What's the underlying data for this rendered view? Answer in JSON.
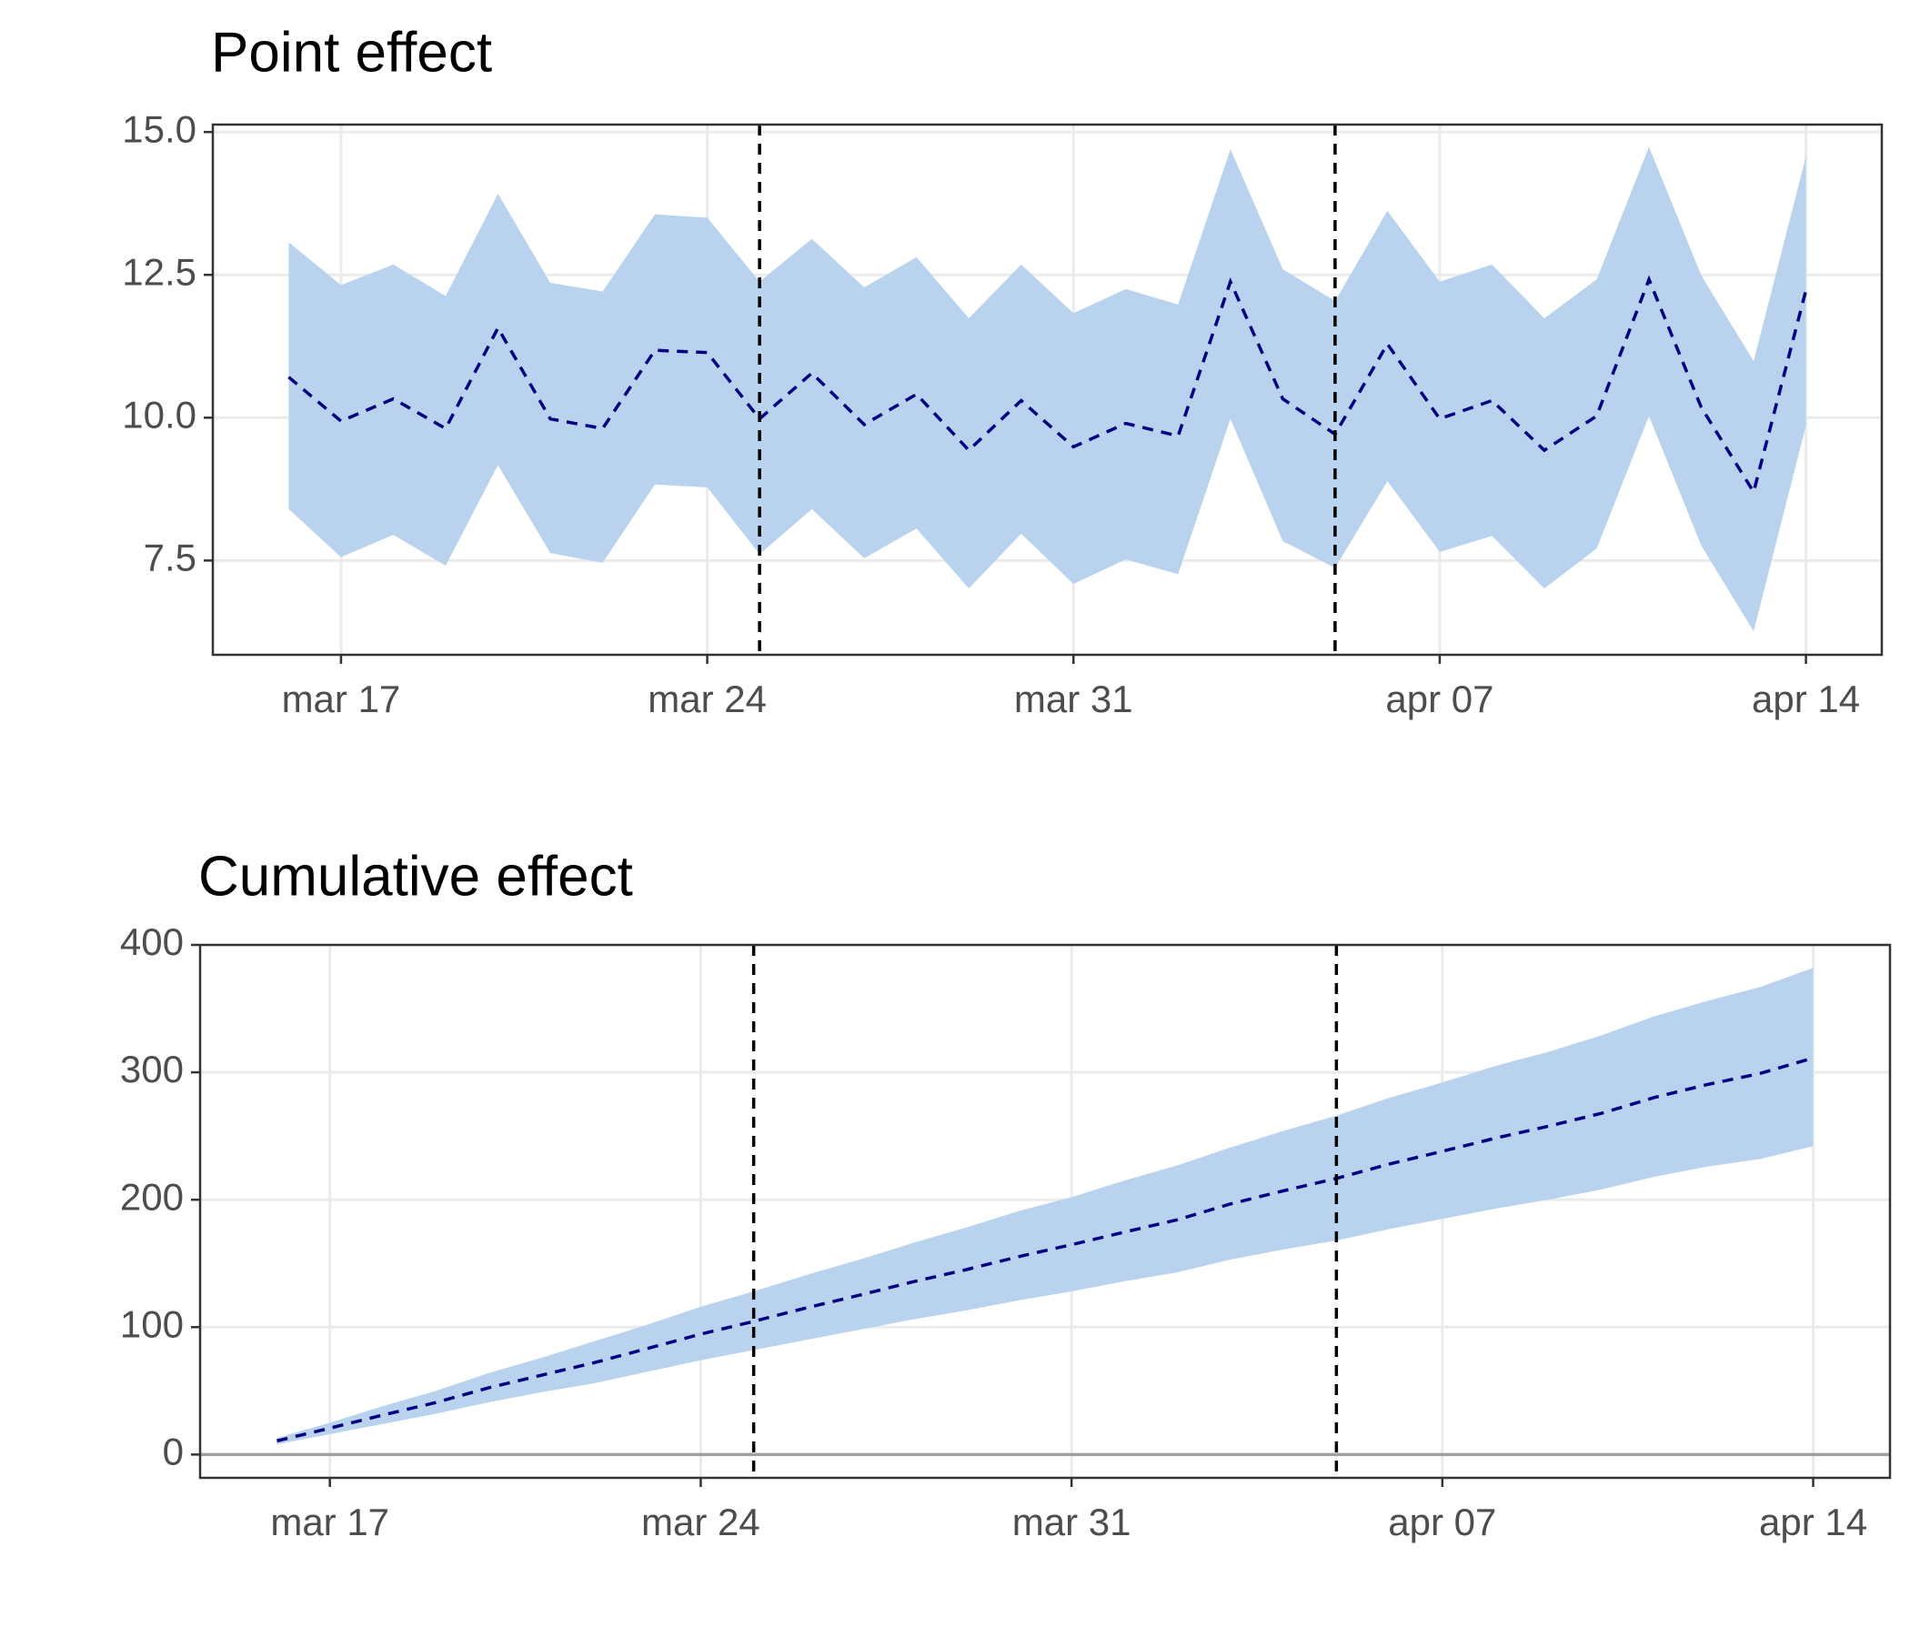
{
  "chart_data": [
    {
      "type": "line",
      "title": "Point effect",
      "x": [
        "03-16",
        "03-17",
        "03-18",
        "03-19",
        "03-20",
        "03-21",
        "03-22",
        "03-23",
        "03-24",
        "03-25",
        "03-26",
        "03-27",
        "03-28",
        "03-29",
        "03-30",
        "03-31",
        "04-01",
        "04-02",
        "04-03",
        "04-04",
        "04-05",
        "04-06",
        "04-07",
        "04-08",
        "04-09",
        "04-10",
        "04-11",
        "04-12",
        "04-13",
        "04-14"
      ],
      "mean": [
        10.71,
        9.94,
        10.33,
        9.81,
        11.57,
        9.98,
        9.81,
        11.18,
        11.14,
        9.98,
        10.78,
        9.88,
        10.41,
        9.43,
        10.3,
        9.49,
        9.9,
        9.68,
        12.38,
        10.33,
        9.71,
        11.29,
        9.98,
        10.3,
        9.43,
        10.03,
        12.42,
        10.18,
        8.7,
        12.23
      ],
      "upper": [
        13.07,
        12.32,
        12.68,
        12.13,
        13.92,
        12.36,
        12.21,
        13.56,
        13.5,
        12.38,
        13.13,
        12.28,
        12.81,
        11.74,
        12.68,
        11.83,
        12.25,
        11.98,
        14.7,
        12.6,
        12.04,
        13.62,
        12.38,
        12.68,
        11.74,
        12.42,
        14.74,
        12.49,
        10.99,
        14.57
      ],
      "lower": [
        8.4,
        7.56,
        7.95,
        7.41,
        9.17,
        7.63,
        7.46,
        8.83,
        8.78,
        7.61,
        8.4,
        7.54,
        8.06,
        7.01,
        7.97,
        7.09,
        7.52,
        7.26,
        9.98,
        7.84,
        7.37,
        8.89,
        7.65,
        7.93,
        7.01,
        7.71,
        10.03,
        7.76,
        6.26,
        9.86
      ],
      "line_color": "#000080",
      "band_color": "#b9d3ee",
      "vlines": [
        "03-25",
        "04-05"
      ],
      "ylim": [
        5.85,
        15.13
      ],
      "yticks": [
        7.5,
        {
          "value": 10,
          "label": "10.0"
        },
        12.5,
        {
          "value": 15,
          "label": "15.0"
        }
      ],
      "xticks": [
        {
          "value": "03-17",
          "label": "mar 17"
        },
        {
          "value": "03-24",
          "label": "mar 24"
        },
        {
          "value": "03-31",
          "label": "mar 31"
        },
        {
          "value": "04-07",
          "label": "apr 07"
        },
        {
          "value": "04-14",
          "label": "apr 14"
        }
      ],
      "grid": true
    },
    {
      "type": "line",
      "title": "Cumulative effect",
      "x": [
        "03-16",
        "03-17",
        "03-18",
        "03-19",
        "03-20",
        "03-21",
        "03-22",
        "03-23",
        "03-24",
        "03-25",
        "03-26",
        "03-27",
        "03-28",
        "03-29",
        "03-30",
        "03-31",
        "04-01",
        "04-02",
        "04-03",
        "04-04",
        "04-05",
        "04-06",
        "04-07",
        "04-08",
        "04-09",
        "04-10",
        "04-11",
        "04-12",
        "04-13",
        "04-14"
      ],
      "mean": [
        10.7,
        20.7,
        31.0,
        40.8,
        52.4,
        62.3,
        72.2,
        83.3,
        94.5,
        104.5,
        115.2,
        125.1,
        135.5,
        145.0,
        155.3,
        164.7,
        174.6,
        184.3,
        196.7,
        207.0,
        216.7,
        228.0,
        238.0,
        248.3,
        257.7,
        267.8,
        280.2,
        290.4,
        299.1,
        311.3
      ],
      "upper": [
        13,
        25,
        38,
        50,
        64,
        76,
        89,
        102,
        116,
        128,
        141,
        153,
        166,
        178,
        191,
        202,
        215,
        227,
        241,
        254,
        266,
        280,
        292,
        305,
        316,
        329,
        344,
        356,
        367,
        382
      ],
      "lower": [
        8,
        16,
        24,
        32,
        41,
        49,
        56,
        65,
        74,
        82,
        90,
        98,
        106,
        113,
        121,
        128,
        136,
        143,
        153,
        161,
        168,
        177,
        185,
        193,
        200,
        208,
        218,
        226,
        232,
        242
      ],
      "line_color": "#000080",
      "band_color": "#b9d3ee",
      "vlines": [
        "03-25",
        "04-05"
      ],
      "hline": 0,
      "ylim": [
        -18.3,
        400
      ],
      "yticks": [
        0,
        100,
        200,
        300,
        400
      ],
      "xticks": [
        {
          "value": "03-17",
          "label": "mar 17"
        },
        {
          "value": "03-24",
          "label": "mar 24"
        },
        {
          "value": "03-31",
          "label": "mar 31"
        },
        {
          "value": "04-07",
          "label": "apr 07"
        },
        {
          "value": "04-14",
          "label": "apr 14"
        }
      ],
      "grid": true
    }
  ]
}
